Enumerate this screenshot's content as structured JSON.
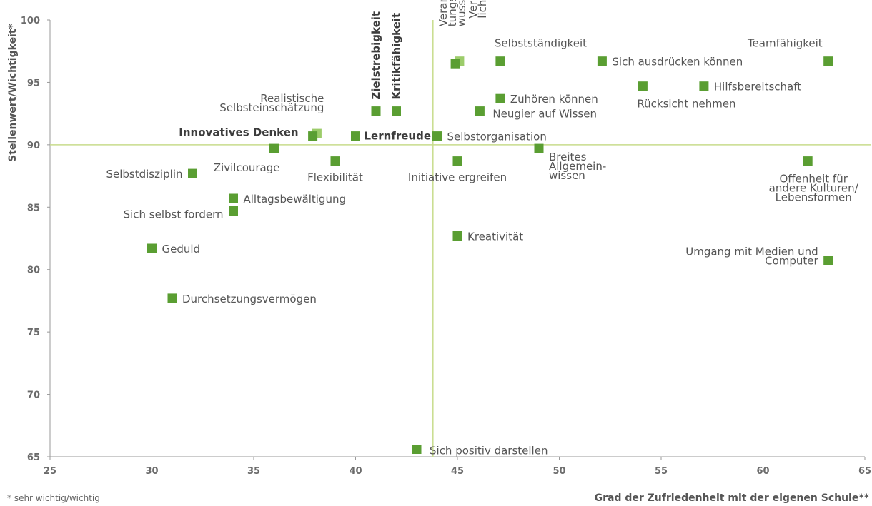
{
  "chart_data": {
    "type": "scatter",
    "xlabel": "Grad der Zufriedenheit mit der eigenen Schule**",
    "ylabel": "Stellenwert/Wichtigkeit*",
    "footnote": "* sehr wichtig/wichtig",
    "xlim": [
      25,
      65
    ],
    "ylim": [
      65,
      100
    ],
    "xticks": [
      "25",
      "30",
      "35",
      "40",
      "45",
      "50",
      "55",
      "60",
      "65"
    ],
    "yticks": [
      "65",
      "70",
      "75",
      "80",
      "85",
      "90",
      "95",
      "100"
    ],
    "reference_lines": {
      "x": 43.8,
      "y": 90
    },
    "colors": {
      "marker": "#5a9e32",
      "marker_light": "#9ccc6a",
      "reference_line": "#c8dc8c",
      "axis": "#9a9a9a"
    },
    "grid": false,
    "points": [
      {
        "label": "Teamfähigkeit",
        "x": 63.2,
        "y": 96.7
      },
      {
        "label": "Sich ausdrücken können",
        "x": 52.1,
        "y": 96.7
      },
      {
        "label": "Selbstständigkeit",
        "x": 47.1,
        "y": 96.7
      },
      {
        "label": "Verläss-\nlichkeit",
        "x": 45.1,
        "y": 96.7,
        "light": true
      },
      {
        "label": "Verantwor-\ntungsbe-\nwusstsein",
        "x": 44.9,
        "y": 96.5
      },
      {
        "label": "Zielstrebigkeit",
        "x": 41.0,
        "y": 92.7,
        "bold": true
      },
      {
        "label": "Kritikfähigkeit",
        "x": 42.0,
        "y": 92.7,
        "bold": true
      },
      {
        "label": "Hilfsbereitschaft",
        "x": 57.1,
        "y": 94.7
      },
      {
        "label": "Rücksicht nehmen",
        "x": 54.1,
        "y": 94.7
      },
      {
        "label": "Zuhören können",
        "x": 47.1,
        "y": 93.7
      },
      {
        "label": "Neugier auf Wissen",
        "x": 46.1,
        "y": 92.7
      },
      {
        "label": "Realistische\nSelbsteinschätzung",
        "x": 38.1,
        "y": 90.9,
        "light": true
      },
      {
        "label": "Innovatives Denken",
        "x": 37.9,
        "y": 90.7,
        "bold": true
      },
      {
        "label": "Lernfreude",
        "x": 40.0,
        "y": 90.7,
        "bold": true
      },
      {
        "label": "Selbstorganisation",
        "x": 44.0,
        "y": 90.7
      },
      {
        "label": "Zivilcourage",
        "x": 36.0,
        "y": 89.7
      },
      {
        "label": "Flexibilität",
        "x": 39.0,
        "y": 88.7
      },
      {
        "label": "Initiative ergreifen",
        "x": 45.0,
        "y": 88.7
      },
      {
        "label": "Breites\nAllgemein-\nwissen",
        "x": 49.0,
        "y": 89.7
      },
      {
        "label": "Offenheit für\nandere Kulturen/\nLebensformen",
        "x": 62.2,
        "y": 88.7
      },
      {
        "label": "Selbstdisziplin",
        "x": 32.0,
        "y": 87.7
      },
      {
        "label": "Alltagsbewältigung",
        "x": 34.0,
        "y": 85.7
      },
      {
        "label": "Sich selbst fordern",
        "x": 34.0,
        "y": 84.7
      },
      {
        "label": "Kreativität",
        "x": 45.0,
        "y": 82.7
      },
      {
        "label": "Geduld",
        "x": 30.0,
        "y": 81.7
      },
      {
        "label": "Umgang mit Medien und\nComputer",
        "x": 63.2,
        "y": 80.7
      },
      {
        "label": "Durchsetzungsvermögen",
        "x": 31.0,
        "y": 77.7
      },
      {
        "label": "Sich positiv darstellen",
        "x": 43.0,
        "y": 65.6
      }
    ]
  }
}
